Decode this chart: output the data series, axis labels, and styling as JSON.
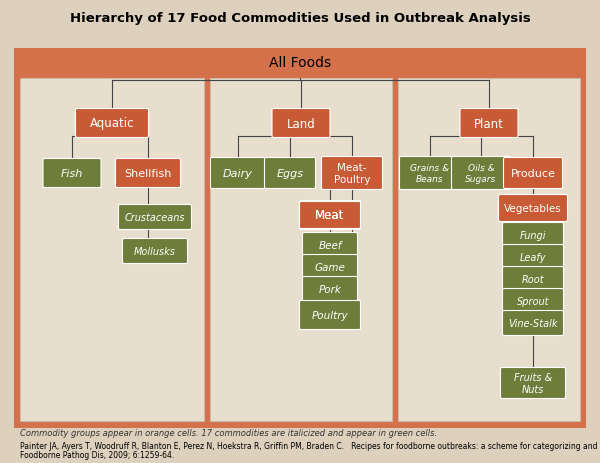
{
  "title": "Hierarchy of 17 Food Commodities Used in Outbreak Analysis",
  "bg_outer": "#ddd0bc",
  "bg_border": "#d4704a",
  "panel_bg": "#e8dece",
  "orange_box": "#c85a35",
  "green_box": "#6e7d3a",
  "line_color": "#444444",
  "text_white": "#ffffff",
  "text_dark": "#222222",
  "caption": "Commodity groups appear in orange cells. 17 commodities are italicized and appear in green cells.",
  "citation1": "Painter JA, Ayers T, Woodruff R, Blanton E, Perez N, Hoekstra R, Griffin PM, Braden C.   Recipes for foodborne outbreaks: a scheme for categorizing and grouping implicated foods.",
  "citation2": "Foodborne Pathog Dis, 2009; 6:1259-64.",
  "all_foods": "All Foods"
}
